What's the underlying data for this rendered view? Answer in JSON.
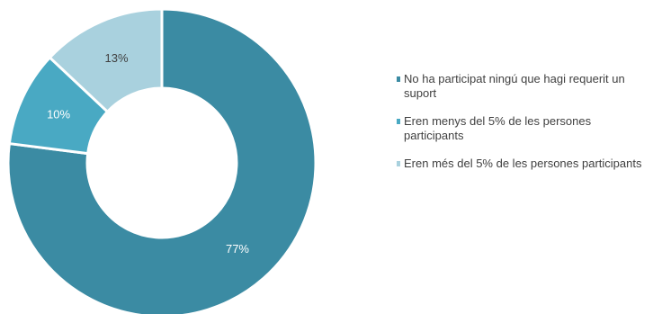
{
  "chart_data": {
    "type": "pie",
    "donut": true,
    "title": "",
    "slices": [
      {
        "label": "No ha participat ningú que hagi requerit un suport",
        "value": 77,
        "display": "77%",
        "color": "#3b8ba3",
        "label_color": "#ffffff"
      },
      {
        "label": "Eren menys del 5% de les persones participants",
        "value": 10,
        "display": "10%",
        "color": "#49a9c3",
        "label_color": "#ffffff"
      },
      {
        "label": "Eren més del 5% de les persones participants",
        "value": 13,
        "display": "13%",
        "color": "#a9d1de",
        "label_color": "#404040"
      }
    ],
    "legend_position": "right"
  }
}
